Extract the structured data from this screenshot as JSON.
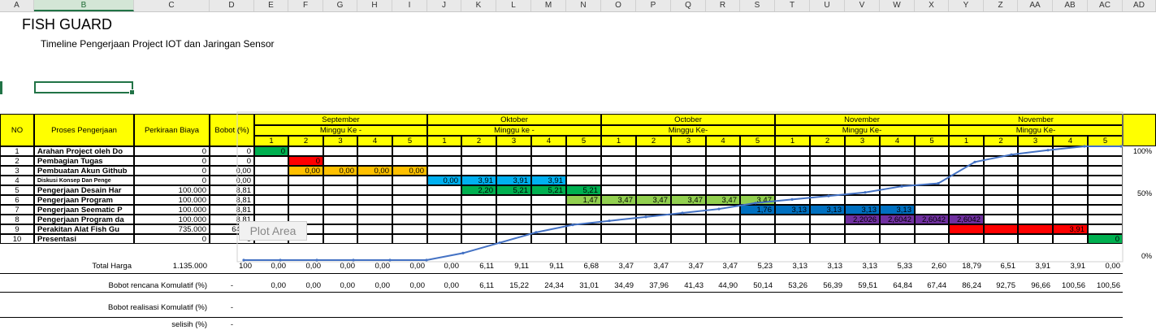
{
  "columns": [
    "A",
    "B",
    "C",
    "D",
    "E",
    "F",
    "G",
    "H",
    "I",
    "J",
    "K",
    "L",
    "M",
    "N",
    "O",
    "P",
    "Q",
    "R",
    "S",
    "T",
    "U",
    "V",
    "W",
    "X",
    "Y",
    "Z",
    "AA",
    "AB",
    "AC",
    "AD"
  ],
  "title": "FISH GUARD",
  "subtitle": "Timeline Pengerjaan Project IOT dan Jaringan Sensor",
  "headers": {
    "no": "NO",
    "proses": "Proses Pengerjaan",
    "biaya": "Perkiraan Biaya",
    "bobot": "Bobot (%)"
  },
  "months": [
    {
      "name": "September",
      "minggu": "Minggu Ke -"
    },
    {
      "name": "Oktober",
      "minggu": "Minggu ke -"
    },
    {
      "name": "October",
      "minggu": "Minggu Ke-"
    },
    {
      "name": "November",
      "minggu": "Minggu Ke-"
    },
    {
      "name": "November",
      "minggu": "Minggu Ke-"
    }
  ],
  "week_numbers": [
    "1",
    "2",
    "3",
    "4",
    "5"
  ],
  "tasks": [
    {
      "no": "1",
      "name": "Arahan Project oleh Do",
      "biaya": "0",
      "bobot": "0"
    },
    {
      "no": "2",
      "name": "Pembagian Tugas",
      "biaya": "0",
      "bobot": "0"
    },
    {
      "no": "3",
      "name": "Pembuatan Akun Github",
      "biaya": "0",
      "bobot": "0,00"
    },
    {
      "no": "4",
      "name": "Diskusi Konsep Dan Penge",
      "biaya": "0",
      "bobot": "0,00"
    },
    {
      "no": "5",
      "name": "Pengerjaan Desain Har",
      "biaya": "100.000",
      "bobot": "8,81"
    },
    {
      "no": "6",
      "name": "Pengerjaan Program",
      "biaya": "100.000",
      "bobot": "8,81"
    },
    {
      "no": "7",
      "name": "Pengerjaan Seematic P",
      "biaya": "100.000",
      "bobot": "8,81"
    },
    {
      "no": "8",
      "name": "Pengerjaan Program da",
      "biaya": "100.000",
      "bobot": "8,81"
    },
    {
      "no": "9",
      "name": "Perakitan Alat Fish Gu",
      "biaya": "735.000",
      "bobot": "64,76"
    },
    {
      "no": "10",
      "name": "Presentasi",
      "biaya": "0",
      "bobot": "0"
    }
  ],
  "gantt": [
    {
      "row": 0,
      "start": 0,
      "values": [
        "0"
      ],
      "color": "#00b050"
    },
    {
      "row": 1,
      "start": 1,
      "values": [
        "0"
      ],
      "color": "#ff0000"
    },
    {
      "row": 2,
      "start": 1,
      "values": [
        "0,00",
        "0,00",
        "0,00",
        "0,00"
      ],
      "color": "#ffc000"
    },
    {
      "row": 3,
      "start": 5,
      "values": [
        "0,00",
        "3,91",
        "3,91",
        "3,91"
      ],
      "color": "#00b0f0"
    },
    {
      "row": 4,
      "start": 6,
      "values": [
        "2,20",
        "5,21",
        "5,21",
        "5,21"
      ],
      "color": "#00b050"
    },
    {
      "row": 5,
      "start": 9,
      "values": [
        "1,47",
        "3,47",
        "3,47",
        "3,47",
        "3,47",
        "3,47"
      ],
      "color": "#92d050"
    },
    {
      "row": 6,
      "start": 14,
      "values": [
        "1,76",
        "3,13",
        "3,13",
        "3,13",
        "3,13"
      ],
      "color": "#0070c0"
    },
    {
      "row": 7,
      "start": 17,
      "values": [
        "2,2026",
        "2,6042",
        "2,6042",
        "2,6042"
      ],
      "color": "#7030a0"
    },
    {
      "row": 8,
      "start": 20,
      "values": [
        "",
        "",
        "",
        "3,91"
      ],
      "color": "#ff0000"
    },
    {
      "row": 9,
      "start": 24,
      "values": [
        "0"
      ],
      "color": "#00b050"
    }
  ],
  "total": {
    "label": "Total Harga",
    "biaya": "1.135.000",
    "bobot": "100",
    "weeks": [
      "0,00",
      "0,00",
      "0,00",
      "0,00",
      "0,00",
      "0,00",
      "6,11",
      "9,11",
      "9,11",
      "6,68",
      "3,47",
      "3,47",
      "3,47",
      "3,47",
      "5,23",
      "3,13",
      "3,13",
      "3,13",
      "5,33",
      "2,60",
      "18,79",
      "6,51",
      "3,91",
      "3,91",
      "0,00"
    ]
  },
  "rencana": {
    "label": "Bobot rencana Komulatif (%)",
    "dash": "-",
    "weeks": [
      "0,00",
      "0,00",
      "0,00",
      "0,00",
      "0,00",
      "0,00",
      "6,11",
      "15,22",
      "24,34",
      "31,01",
      "34,49",
      "37,96",
      "41,43",
      "44,90",
      "50,14",
      "53,26",
      "56,39",
      "59,51",
      "64,84",
      "67,44",
      "86,24",
      "92,75",
      "96,66",
      "100,56",
      "100,56"
    ]
  },
  "realisasi": {
    "label": "Bobot realisasi Komulatif (%)",
    "dash": "-"
  },
  "selisih": {
    "label": "selisih (%)",
    "dash": "-"
  },
  "chart_overlay": {
    "plot_area_label": "Plot Area",
    "axis_max": "100%",
    "axis_mid": "50%",
    "axis_min": "0%"
  },
  "chart_data": {
    "type": "line",
    "x": [
      "1",
      "2",
      "3",
      "4",
      "5",
      "1",
      "2",
      "3",
      "4",
      "5",
      "1",
      "2",
      "3",
      "4",
      "5",
      "1",
      "2",
      "3",
      "4",
      "5",
      "1",
      "2",
      "3",
      "4",
      "5"
    ],
    "series": [
      {
        "values": [
          0,
          0,
          0,
          0,
          0,
          0,
          6.11,
          15.22,
          24.34,
          31.01,
          34.49,
          37.96,
          41.43,
          44.9,
          50.14,
          53.26,
          56.39,
          59.51,
          64.84,
          67.44,
          86.24,
          92.75,
          96.66,
          100.56,
          100.56
        ]
      }
    ],
    "ylim": [
      0,
      100
    ],
    "color": "#4472c4"
  }
}
